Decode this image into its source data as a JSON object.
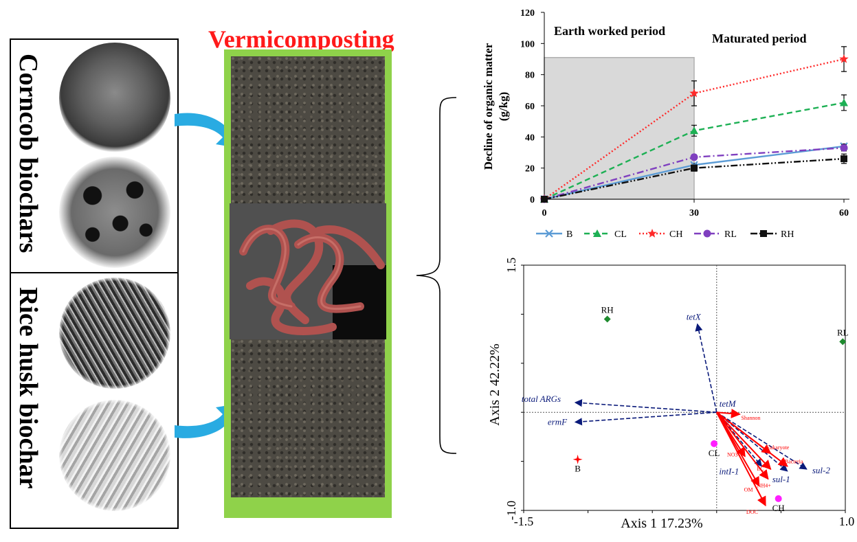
{
  "left_panel": {
    "top_label": "Corncob biochars",
    "bottom_label": "Rice husk biochar"
  },
  "center": {
    "title": "Vermicomposting"
  },
  "line_chart": {
    "ylabel_line1": "Decline of organic matter",
    "ylabel_line2": "(g/kg)",
    "period1": "Earth worked period",
    "period2": "Maturated period",
    "yticks": [
      "0",
      "20",
      "40",
      "60",
      "80",
      "100",
      "120"
    ],
    "xticks": [
      "0",
      "30",
      "60"
    ],
    "legend": [
      "B",
      "CL",
      "CH",
      "RL",
      "RH"
    ]
  },
  "biplot": {
    "xlabel": "Axis 1 17.23%",
    "ylabel": "Axis 2 42.22%",
    "xticks": [
      "-1.5",
      "1.0"
    ],
    "yticks": [
      "1.5",
      "-1.0"
    ],
    "samples": [
      "RH",
      "RL",
      "CL",
      "B",
      "CH"
    ],
    "args": [
      "tetX",
      "total ARGs",
      "tetM",
      "ermF",
      "intI-1",
      "sul-1",
      "sul-2"
    ],
    "envs": [
      "Shannon",
      "Eukaryote",
      "Bacteria",
      "NO3-",
      "EC",
      "NH4+",
      "OM",
      "DOC"
    ]
  },
  "chart_data": [
    {
      "type": "line",
      "title": "",
      "xlabel": "",
      "ylabel": "Decline of organic matter (g/kg)",
      "x": [
        0,
        30,
        60
      ],
      "xlim": [
        0,
        60
      ],
      "ylim": [
        0,
        120
      ],
      "grid": false,
      "legend_position": "bottom",
      "series": [
        {
          "name": "B",
          "values": [
            0,
            22,
            34
          ],
          "error": [
            0,
            1,
            1.5
          ],
          "color": "#5b9bd5",
          "dash": "solid",
          "marker": "x"
        },
        {
          "name": "CL",
          "values": [
            0,
            44,
            62
          ],
          "error": [
            0,
            3.5,
            5
          ],
          "color": "#1db054",
          "dash": "dash",
          "marker": "triangle"
        },
        {
          "name": "CH",
          "values": [
            0,
            68,
            90
          ],
          "error": [
            0,
            8,
            8
          ],
          "color": "#ff2a2a",
          "dash": "dot",
          "marker": "star"
        },
        {
          "name": "RL",
          "values": [
            0,
            27,
            33
          ],
          "error": [
            0,
            1.5,
            2
          ],
          "color": "#7f3fbf",
          "dash": "dashdot",
          "marker": "circle"
        },
        {
          "name": "RH",
          "values": [
            0,
            20,
            26
          ],
          "error": [
            0,
            2,
            3
          ],
          "color": "#111111",
          "dash": "dashdotdot",
          "marker": "square"
        }
      ],
      "shaded_region": {
        "from": 0,
        "to": 30,
        "label": "Earth worked period"
      },
      "annotation_right": "Maturated period"
    },
    {
      "type": "scatter",
      "title": "",
      "xlabel": "Axis 1 17.23%",
      "ylabel": "Axis 2 42.22%",
      "xlim": [
        -1.5,
        1.0
      ],
      "ylim": [
        -1.0,
        1.5
      ],
      "samples": [
        {
          "name": "RH",
          "x": -0.85,
          "y": 0.95,
          "color": "#1e8a2e",
          "marker": "diamond"
        },
        {
          "name": "RL",
          "x": 0.98,
          "y": 0.72,
          "color": "#1e8a2e",
          "marker": "diamond"
        },
        {
          "name": "CL",
          "x": -0.02,
          "y": -0.32,
          "color": "#ff1fff",
          "marker": "circle"
        },
        {
          "name": "B",
          "x": -1.08,
          "y": -0.48,
          "color": "#ff0000",
          "marker": "star"
        },
        {
          "name": "CH",
          "x": 0.48,
          "y": -0.88,
          "color": "#ff1fff",
          "marker": "circle"
        }
      ],
      "arg_vectors": [
        {
          "name": "tetX",
          "x": -0.15,
          "y": 0.9
        },
        {
          "name": "total ARGs",
          "x": -1.1,
          "y": 0.1
        },
        {
          "name": "ermF",
          "x": -1.1,
          "y": -0.1
        },
        {
          "name": "tetM",
          "x": 0.0,
          "y": 0.0
        },
        {
          "name": "intI-1",
          "x": 0.35,
          "y": -0.55
        },
        {
          "name": "sul-1",
          "x": 0.55,
          "y": -0.6
        },
        {
          "name": "sul-2",
          "x": 0.7,
          "y": -0.58
        }
      ],
      "env_vectors": [
        {
          "name": "Shannon",
          "x": 0.18,
          "y": -0.02
        },
        {
          "name": "Eukaryote",
          "x": 0.42,
          "y": -0.42
        },
        {
          "name": "Bacteria",
          "x": 0.55,
          "y": -0.55
        },
        {
          "name": "NO3-",
          "x": 0.22,
          "y": -0.45
        },
        {
          "name": "EC",
          "x": 0.42,
          "y": -0.58
        },
        {
          "name": "NH4+",
          "x": 0.4,
          "y": -0.68
        },
        {
          "name": "OM",
          "x": 0.33,
          "y": -0.75
        },
        {
          "name": "DOC",
          "x": 0.38,
          "y": -0.95
        }
      ]
    }
  ]
}
